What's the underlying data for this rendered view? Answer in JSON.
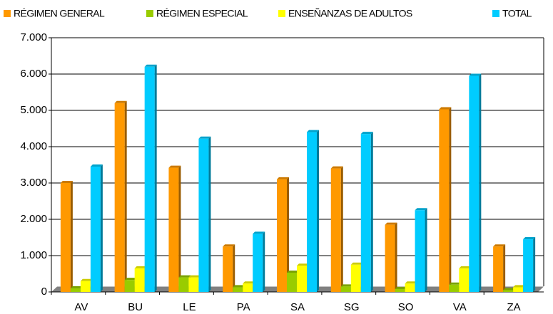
{
  "chart_data": {
    "type": "bar",
    "categories": [
      "AV",
      "BU",
      "LE",
      "PA",
      "SA",
      "SG",
      "SO",
      "VA",
      "ZA"
    ],
    "series": [
      {
        "name": "RÉGIMEN GENERAL",
        "color": "#ff9900",
        "values": [
          3000,
          5200,
          3420,
          1250,
          3100,
          3400,
          1850,
          5030,
          1250
        ]
      },
      {
        "name": "RÉGIMEN ESPECIAL",
        "color": "#99cc00",
        "values": [
          100,
          330,
          400,
          130,
          530,
          150,
          80,
          200,
          50
        ]
      },
      {
        "name": "ENSEÑANZAS DE ADULTOS",
        "color": "#ffff00",
        "values": [
          300,
          650,
          400,
          230,
          720,
          750,
          230,
          650,
          130
        ]
      },
      {
        "name": "TOTAL",
        "color": "#00ccff",
        "values": [
          3450,
          6200,
          4220,
          1600,
          4400,
          4350,
          2250,
          5950,
          1450
        ]
      }
    ],
    "ylim": [
      0,
      7000
    ],
    "yticks": [
      0,
      {
        "value": 1000,
        "label": "1.000"
      },
      {
        "value": 2000,
        "label": "2.000"
      },
      {
        "value": 3000,
        "label": "3.000"
      },
      {
        "value": 4000,
        "label": "4.000"
      },
      {
        "value": 5000,
        "label": "5.000"
      },
      {
        "value": 6000,
        "label": "6.000"
      },
      {
        "value": 7000,
        "label": "7.000"
      }
    ],
    "grid": true
  }
}
